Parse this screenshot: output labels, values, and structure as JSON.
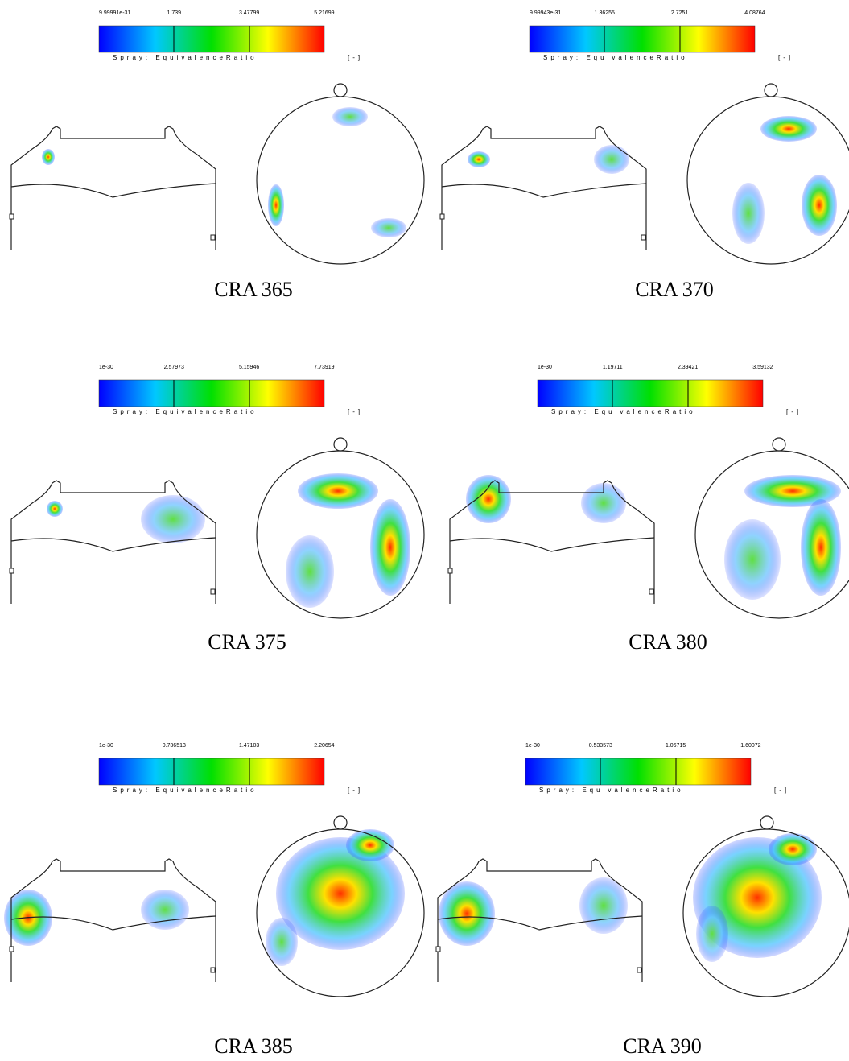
{
  "panels": [
    {
      "caption": "CRA 365",
      "colorbar": {
        "ticks": [
          "9.99991e-31",
          "1.739",
          "3.47799",
          "5.21699"
        ],
        "label": "Spray: EquivalenceRatio",
        "unit": "[-]"
      }
    },
    {
      "caption": "CRA 370",
      "colorbar": {
        "ticks": [
          "9.99943e-31",
          "1.36255",
          "2.7251",
          "4.08764"
        ],
        "label": "Spray: EquivalenceRatio",
        "unit": "[-]"
      }
    },
    {
      "caption": "CRA 375",
      "colorbar": {
        "ticks": [
          "1e-30",
          "2.57973",
          "5.15946",
          "7.73919"
        ],
        "label": "Spray: EquivalenceRatio",
        "unit": "[-]"
      }
    },
    {
      "caption": "CRA 380",
      "colorbar": {
        "ticks": [
          "1e-30",
          "1.19711",
          "2.39421",
          "3.59132"
        ],
        "label": "Spray: EquivalenceRatio",
        "unit": "[-]"
      }
    },
    {
      "caption": "CRA 385",
      "colorbar": {
        "ticks": [
          "1e-30",
          "0.736513",
          "1.47103",
          "2.20654"
        ],
        "label": "Spray: EquivalenceRatio",
        "unit": "[-]"
      }
    },
    {
      "caption": "CRA 390",
      "colorbar": {
        "ticks": [
          "1e-30",
          "0.533573",
          "1.06715",
          "1.60072"
        ],
        "label": "Spray: EquivalenceRatio",
        "unit": "[-]"
      }
    }
  ]
}
